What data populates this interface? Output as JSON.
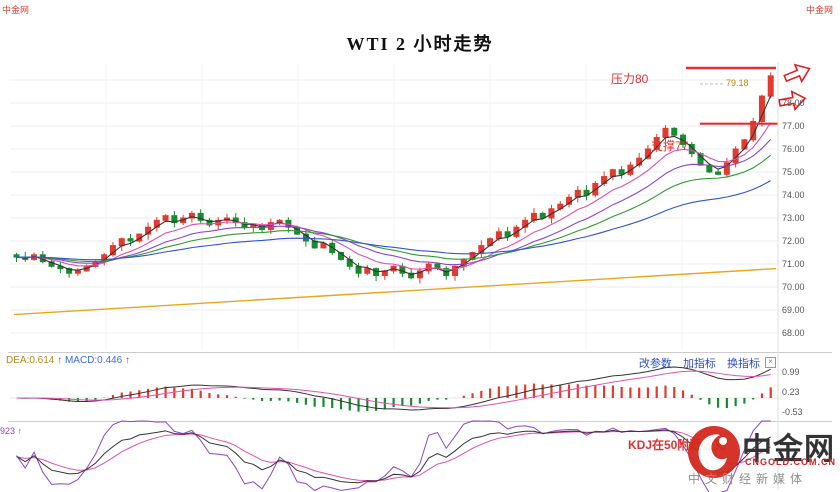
{
  "title": "WTI 2 小时走势",
  "watermark": {
    "top_left": "中金网",
    "top_right": "中金网",
    "logo_text": "中金网",
    "logo_domain": "CNGOLD.COM.CN",
    "logo_tagline": "中文财经新媒体",
    "brand_red": "#d22a1e"
  },
  "annotations": {
    "resistance_label": "压力80",
    "support_label": "支撑77",
    "last_price_label": "79.18",
    "kdj_note": "KDJ在50附近金叉",
    "red": "#e03030"
  },
  "toolbar": {
    "links": [
      "改参数",
      "加指标",
      "换指标"
    ],
    "close_icon": "×"
  },
  "macd_panel": {
    "dea_label": "DEA:0.614",
    "dea_arrow": "↑",
    "macd_label": "MACD:0.446",
    "macd_arrow": "↑",
    "axis_labels": [
      "0.99",
      "0.23",
      "-0.53"
    ]
  },
  "kdj_panel": {
    "left_label": "923 ↑"
  },
  "price_axis_labels": [
    "78.00",
    "77.00",
    "76.00",
    "75.00",
    "74.00",
    "73.00",
    "72.00",
    "71.00",
    "70.00",
    "69.00",
    "68.00"
  ],
  "chart_data": {
    "type": "candlestick",
    "title": "WTI 2 小时走势",
    "timeframe": "2小时",
    "price_axis": {
      "visible_ticks": [
        78,
        77,
        76,
        75,
        74,
        73,
        72,
        71,
        70,
        69,
        68
      ],
      "approx_range": [
        67.3,
        79.7
      ]
    },
    "closes": [
      71.3,
      71.2,
      71.4,
      71.1,
      70.9,
      70.8,
      70.6,
      70.7,
      70.9,
      71.1,
      71.4,
      71.8,
      72.1,
      72.0,
      72.3,
      72.6,
      72.9,
      73.1,
      72.8,
      73.0,
      73.2,
      72.9,
      72.7,
      72.9,
      73.0,
      72.8,
      72.6,
      72.7,
      72.5,
      72.8,
      72.9,
      72.6,
      72.3,
      72.0,
      71.7,
      71.9,
      71.5,
      71.2,
      70.9,
      70.6,
      70.8,
      70.5,
      70.7,
      70.9,
      70.6,
      70.4,
      70.7,
      71.0,
      70.8,
      70.5,
      70.9,
      71.2,
      71.5,
      71.8,
      72.1,
      72.4,
      72.2,
      72.6,
      72.9,
      73.2,
      73.0,
      73.4,
      73.6,
      73.9,
      74.2,
      74.0,
      74.5,
      74.8,
      75.1,
      74.9,
      75.3,
      75.6,
      76.0,
      76.5,
      76.9,
      76.6,
      76.2,
      75.8,
      75.3,
      75.0,
      74.9,
      75.4,
      76.0,
      76.4,
      77.2,
      78.3,
      79.18
    ],
    "last_price": 79.18,
    "resistance_level": 79.5,
    "resistance_text": "压力80",
    "support_level": 77.1,
    "support_text": "支撑77",
    "long_ma_trend": {
      "start": 68.8,
      "end": 70.8,
      "color": "#eaa61e"
    },
    "ma_lines": [
      {
        "period": 3,
        "color": "#333333"
      },
      {
        "period": 8,
        "color": "#e24fb0"
      },
      {
        "period": 15,
        "color": "#8e44c8"
      },
      {
        "period": 24,
        "color": "#2f9a2f"
      },
      {
        "period": 45,
        "color": "#2f55cc"
      }
    ],
    "up_color": "#e23a2e",
    "down_color": "#188a2f",
    "macd": {
      "dea_display": 0.614,
      "macd_display": 0.446,
      "axis_values": [
        0.99,
        0.23,
        -0.53
      ],
      "fast": 12,
      "slow": 26,
      "signal": 9
    },
    "kdj": {
      "window": 9,
      "note": "KDJ在50附近金叉"
    }
  }
}
